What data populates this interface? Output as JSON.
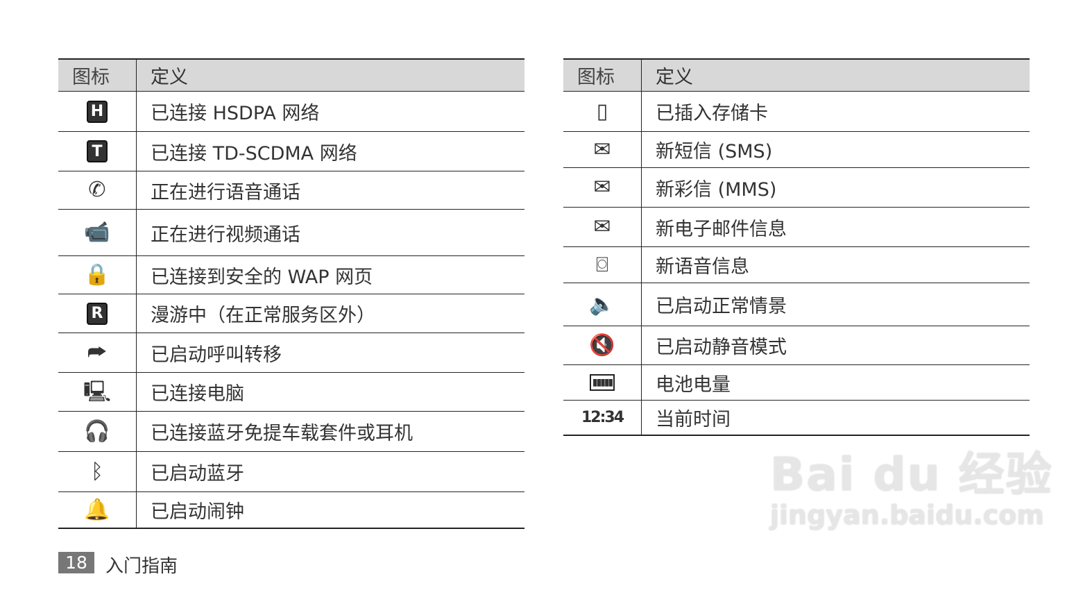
{
  "header": {
    "icon_col": "图标",
    "def_col": "定义"
  },
  "left_table": [
    {
      "icon": "hsdpa-icon",
      "glyph": "H",
      "text": "已连接 HSDPA 网络"
    },
    {
      "icon": "td-scdma-icon",
      "glyph": "T",
      "text": "已连接 TD-SCDMA 网络"
    },
    {
      "icon": "voice-call-icon",
      "glyph": "✆",
      "text": "正在进行语音通话"
    },
    {
      "icon": "video-call-icon",
      "glyph": "📹",
      "text": "正在进行视频通话"
    },
    {
      "icon": "secure-wap-icon",
      "glyph": "🔒",
      "text": "已连接到安全的 WAP 网页"
    },
    {
      "icon": "roaming-icon",
      "glyph": "R",
      "text": "漫游中（在正常服务区外）"
    },
    {
      "icon": "call-forward-icon",
      "glyph": "⮫",
      "text": "已启动呼叫转移"
    },
    {
      "icon": "pc-connected-icon",
      "glyph": "🖳",
      "text": "已连接电脑"
    },
    {
      "icon": "bluetooth-headset-icon",
      "glyph": "🎧",
      "text": "已连接蓝牙免提车载套件或耳机"
    },
    {
      "icon": "bluetooth-icon",
      "glyph": "ᛒ",
      "text": "已启动蓝牙"
    },
    {
      "icon": "alarm-icon",
      "glyph": "🔔",
      "text": "已启动闹钟"
    }
  ],
  "right_table": [
    {
      "icon": "memory-card-icon",
      "glyph": "▯",
      "text": "已插入存储卡"
    },
    {
      "icon": "sms-icon",
      "glyph": "✉",
      "text": "新短信 (SMS)"
    },
    {
      "icon": "mms-icon",
      "glyph": "✉",
      "text": "新彩信 (MMS)"
    },
    {
      "icon": "email-icon",
      "glyph": "✉",
      "text": "新电子邮件信息"
    },
    {
      "icon": "voicemail-icon",
      "glyph": "⌼",
      "text": "新语音信息"
    },
    {
      "icon": "normal-profile-icon",
      "glyph": "🔈",
      "text": "已启动正常情景"
    },
    {
      "icon": "silent-profile-icon",
      "glyph": "🔇",
      "text": "已启动静音模式"
    },
    {
      "icon": "battery-icon",
      "glyph": "▮▮▮▮▮",
      "text": "电池电量"
    },
    {
      "icon": "clock-icon",
      "glyph": "12:34",
      "text": "当前时间"
    }
  ],
  "footer": {
    "page_number": "18",
    "section": "入门指南"
  },
  "watermark": {
    "logo": "Bai du 经验",
    "url": "jingyan.baidu.com"
  }
}
